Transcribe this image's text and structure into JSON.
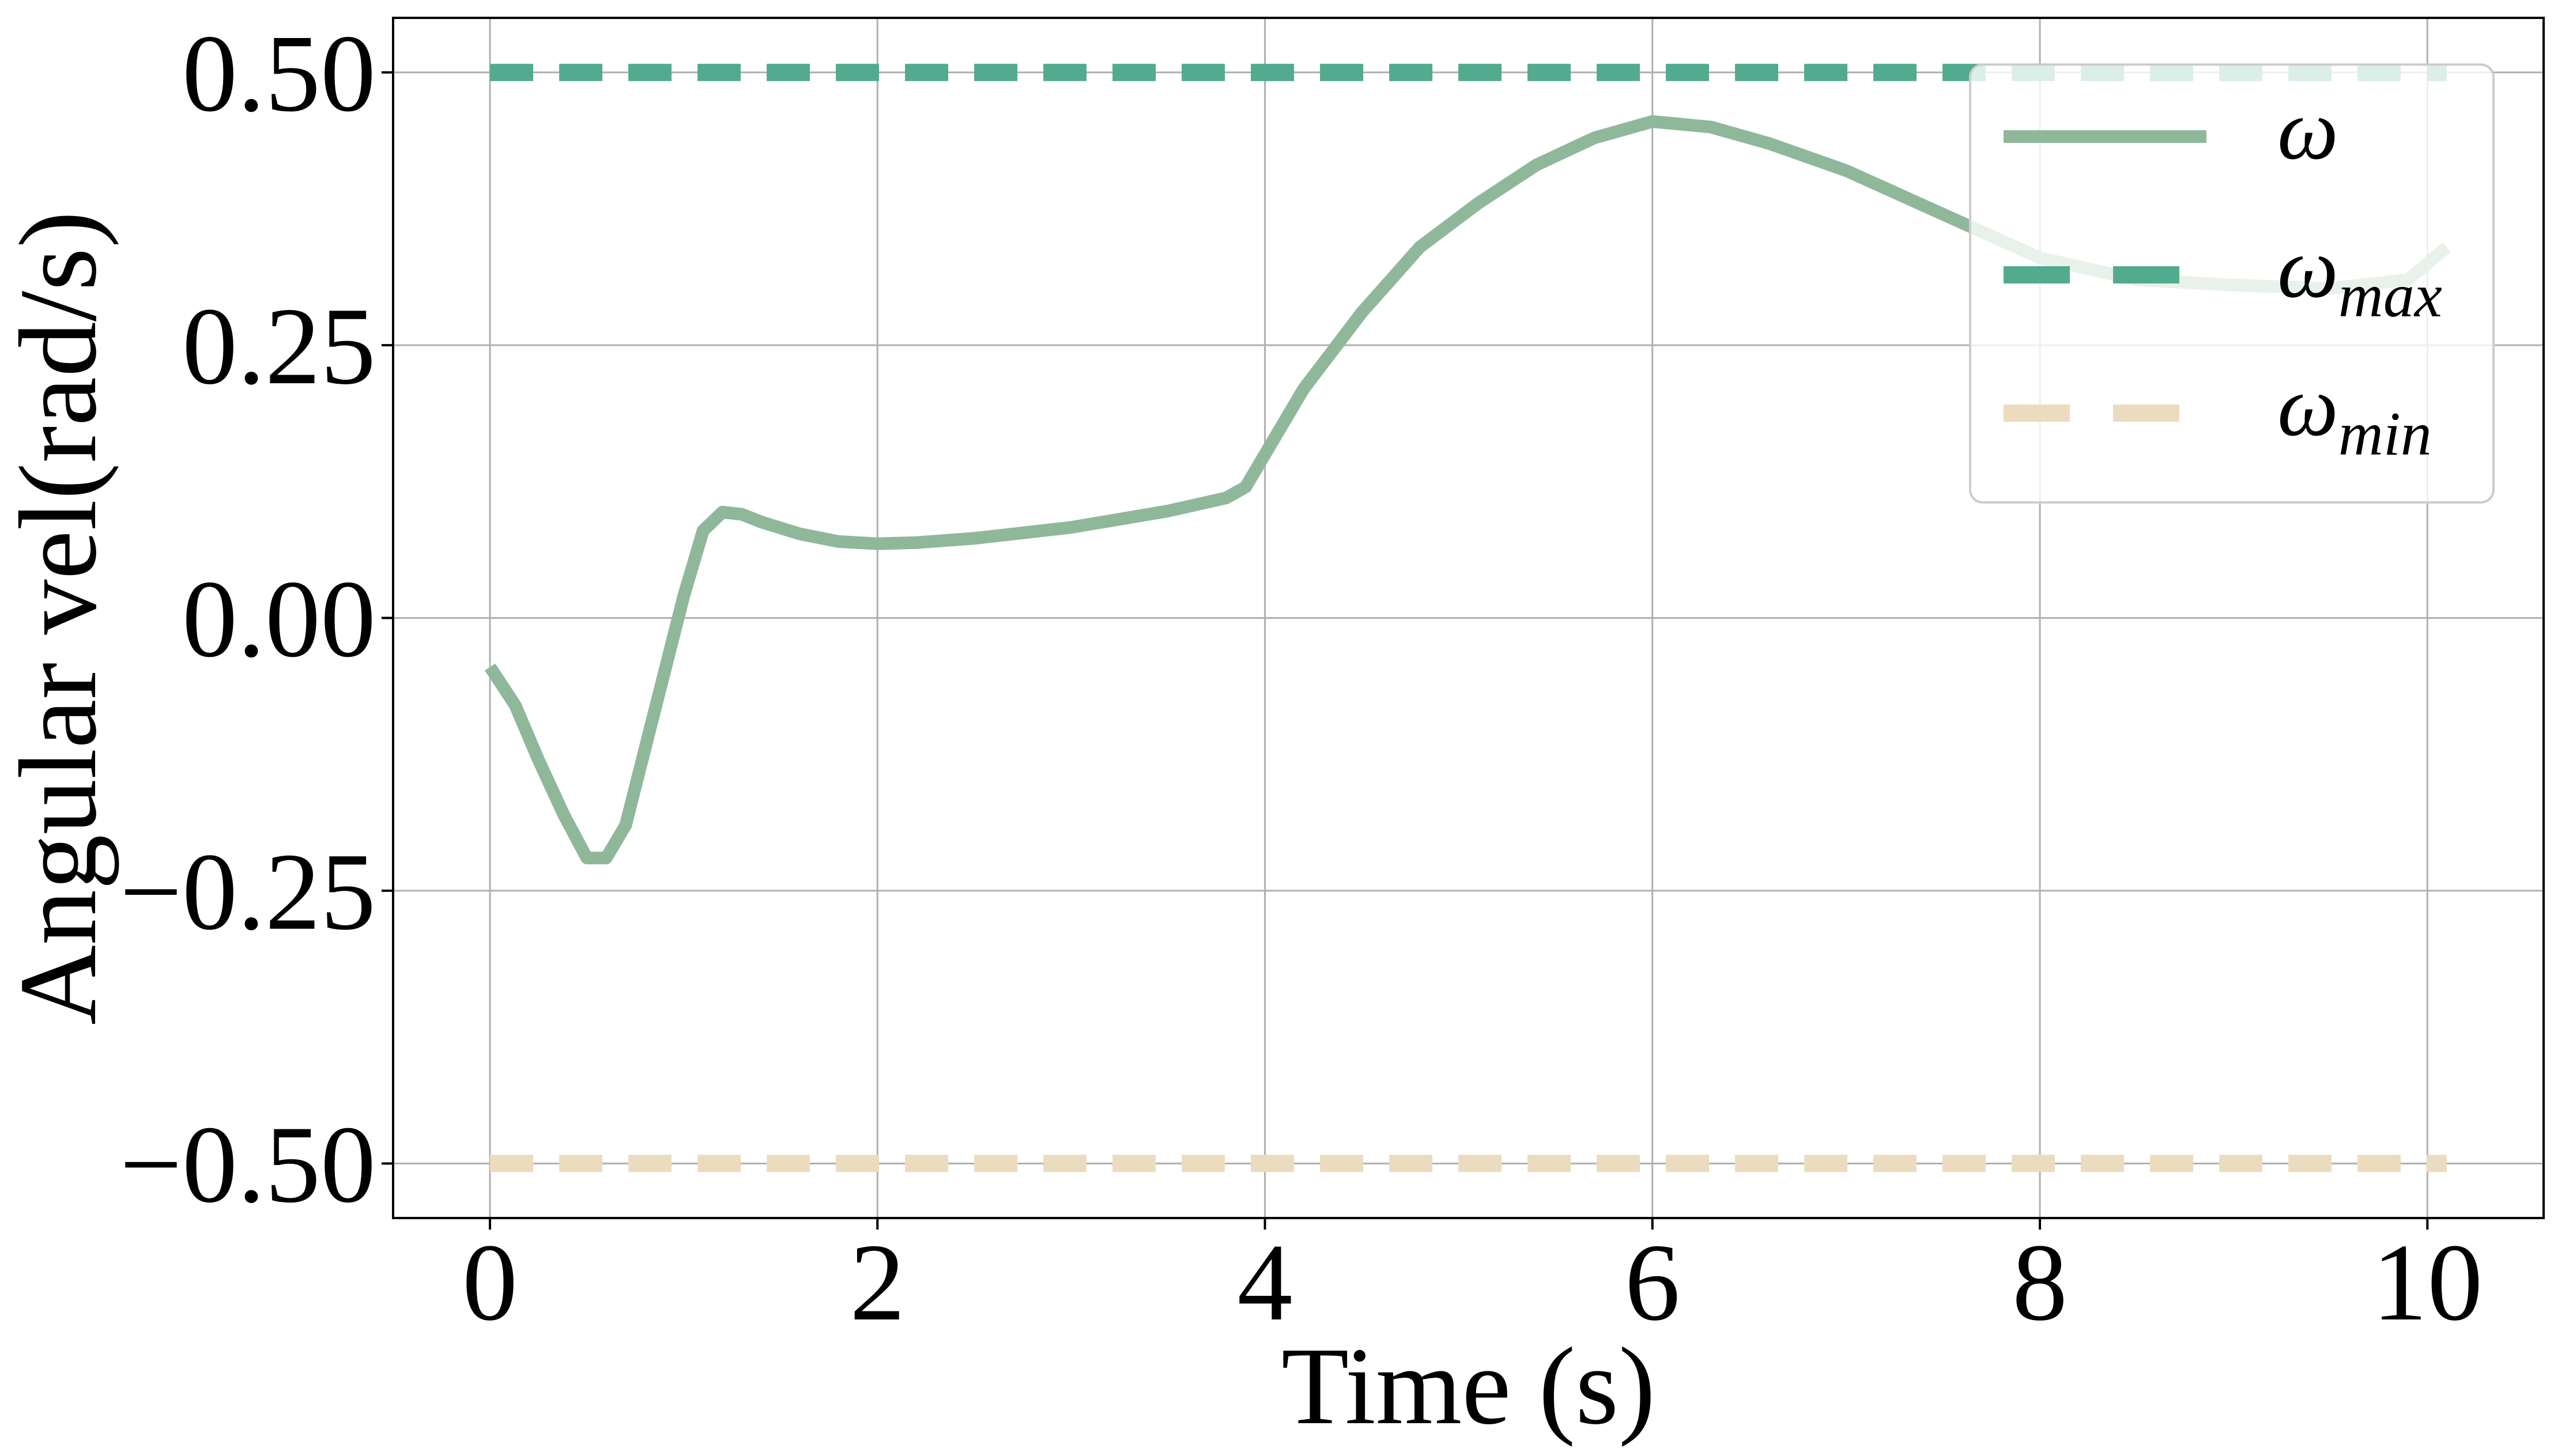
{
  "chart_data": {
    "type": "line",
    "title": "",
    "xlabel": "Time (s)",
    "ylabel": "Angular vel(rad/s)",
    "xlim": [
      -0.5,
      10.6
    ],
    "ylim": [
      -0.55,
      0.55
    ],
    "xticks": [
      0,
      2,
      4,
      6,
      8,
      10
    ],
    "xtick_labels": [
      "0",
      "2",
      "4",
      "6",
      "8",
      "10"
    ],
    "yticks": [
      -0.5,
      -0.25,
      0.0,
      0.25,
      0.5
    ],
    "ytick_labels": [
      "−0.50",
      "−0.25",
      "0.00",
      "0.25",
      "0.50"
    ],
    "grid": true,
    "legend_position": "top-right",
    "series": [
      {
        "name": "ω",
        "style": "solid",
        "color": "#8fb89b",
        "x": [
          0.0,
          0.13,
          0.25,
          0.38,
          0.5,
          0.6,
          0.7,
          0.8,
          0.9,
          1.0,
          1.1,
          1.2,
          1.3,
          1.4,
          1.6,
          1.8,
          2.0,
          2.2,
          2.5,
          3.0,
          3.5,
          3.8,
          3.9,
          4.0,
          4.2,
          4.5,
          4.8,
          5.1,
          5.4,
          5.7,
          6.0,
          6.3,
          6.6,
          7.0,
          7.5,
          8.0,
          8.5,
          9.0,
          9.5,
          9.9,
          10.1
        ],
        "y": [
          -0.045,
          -0.08,
          -0.13,
          -0.18,
          -0.22,
          -0.22,
          -0.19,
          -0.12,
          -0.05,
          0.02,
          0.08,
          0.097,
          0.095,
          0.088,
          0.077,
          0.07,
          0.068,
          0.069,
          0.073,
          0.083,
          0.098,
          0.11,
          0.12,
          0.15,
          0.21,
          0.28,
          0.34,
          0.38,
          0.415,
          0.44,
          0.455,
          0.45,
          0.435,
          0.41,
          0.37,
          0.33,
          0.31,
          0.305,
          0.302,
          0.31,
          0.34
        ]
      },
      {
        "name": "ωmax",
        "label_main": "ω",
        "label_sub": "max",
        "style": "dashed",
        "color": "#52ab8e",
        "x": [
          0.0,
          10.1
        ],
        "y": [
          0.5,
          0.5
        ]
      },
      {
        "name": "ωmin",
        "label_main": "ω",
        "label_sub": "min",
        "style": "dashed",
        "color": "#ecdcbf",
        "x": [
          0.0,
          10.1
        ],
        "y": [
          -0.5,
          -0.5
        ]
      }
    ]
  }
}
